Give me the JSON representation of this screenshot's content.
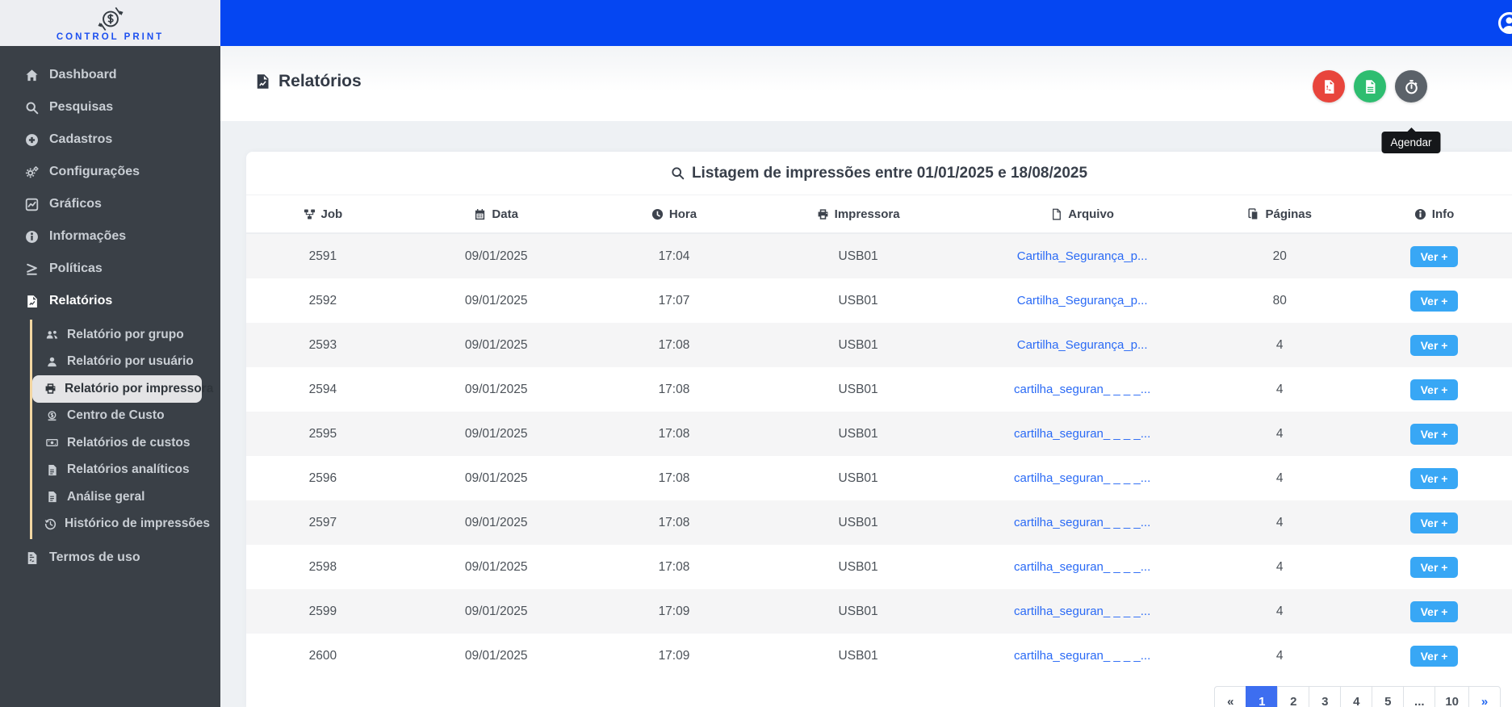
{
  "app": {
    "brand": "CONTROL PRINT"
  },
  "colors": {
    "topbar": "#0546f2",
    "sidebar": "#3a4047",
    "brand_blue": "#1d50f0",
    "submenu_border": "#f3d7a2",
    "link": "#2a6af5",
    "ver_button": "#38a7f5",
    "pdf_button": "#e8453c",
    "csv_button": "#2ebd70",
    "schedule_button": "#5b6269",
    "pagination_active": "#3d6ef0",
    "row_stripe": "#f5f5f6"
  },
  "icons": {
    "brand-logo-icon": "dollar-circle-with-arrows",
    "home-icon": "house",
    "search-icon": "magnifier",
    "plus-circle-icon": "circled-plus",
    "gears-icon": "two-gears",
    "chart-icon": "line-chart-square",
    "info-icon": "circled-i",
    "gte-icon": "greater-or-equal",
    "file-chart-icon": "report-file",
    "users-icon": "people-group",
    "user-icon": "person",
    "printer-icon": "printer",
    "coin-icon": "dollar-coin-on-base",
    "bill-icon": "money-bill",
    "file-lines-icon": "document-with-lines",
    "history-icon": "clock-with-back-arrow",
    "file-contract-icon": "contract-document",
    "diagram-icon": "project-diagram",
    "calendar-icon": "calendar",
    "clock-icon": "clock",
    "file-icon": "blank-file",
    "pages-icon": "stacked-pages",
    "file-pdf-icon": "pdf-file",
    "file-csv-icon": "csv-file",
    "stopwatch-icon": "stopwatch",
    "user-circle-icon": "account-avatar",
    "chevron-down-icon": "chevron-down",
    "chevron-up-icon": "chevron-up"
  },
  "sidebar": {
    "items": [
      {
        "label": "Dashboard",
        "icon": "home"
      },
      {
        "label": "Pesquisas",
        "icon": "search"
      },
      {
        "label": "Cadastros",
        "icon": "plus-circle",
        "chevron": "down"
      },
      {
        "label": "Configurações",
        "icon": "gears",
        "chevron": "down"
      },
      {
        "label": "Gráficos",
        "icon": "chart",
        "chevron": "down"
      },
      {
        "label": "Informações",
        "icon": "info",
        "chevron": "down"
      },
      {
        "label": "Políticas",
        "icon": "gte",
        "chevron": "down"
      },
      {
        "label": "Relatórios",
        "icon": "file-chart",
        "chevron": "up",
        "bold": true,
        "children": [
          {
            "label": "Relatório por grupo",
            "icon": "users"
          },
          {
            "label": "Relatório por usuário",
            "icon": "user"
          },
          {
            "label": "Relatório por impressora",
            "icon": "printer",
            "active": true
          },
          {
            "label": "Centro de Custo",
            "icon": "coin"
          },
          {
            "label": "Relatórios de custos",
            "icon": "bill"
          },
          {
            "label": "Relatórios analíticos",
            "icon": "file-lines"
          },
          {
            "label": "Análise geral",
            "icon": "file-lines"
          },
          {
            "label": "Histórico de impressões",
            "icon": "history"
          }
        ]
      },
      {
        "label": "Termos de uso",
        "icon": "file-contract"
      }
    ]
  },
  "header": {
    "title": "Relatórios",
    "tooltip": "Agendar",
    "buttons": [
      {
        "name": "export-pdf",
        "icon": "file-pdf",
        "color": "#e8453c"
      },
      {
        "name": "export-csv",
        "icon": "file-csv",
        "color": "#2ebd70"
      },
      {
        "name": "schedule",
        "icon": "stopwatch",
        "color": "#5b6269"
      }
    ]
  },
  "card": {
    "title": "Listagem de impressões entre 01/01/2025 e 18/08/2025"
  },
  "table": {
    "info_button_label": "Ver +",
    "columns": [
      {
        "label": "Job",
        "icon": "diagram"
      },
      {
        "label": "Data",
        "icon": "calendar"
      },
      {
        "label": "Hora",
        "icon": "clock"
      },
      {
        "label": "Impressora",
        "icon": "printer"
      },
      {
        "label": "Arquivo",
        "icon": "file"
      },
      {
        "label": "Páginas",
        "icon": "pages"
      },
      {
        "label": "Info",
        "icon": "info"
      }
    ],
    "rows": [
      {
        "job": "2591",
        "data": "09/01/2025",
        "hora": "17:04",
        "impressora": "USB01",
        "arquivo": "Cartilha_Segurança_p...",
        "paginas": "20"
      },
      {
        "job": "2592",
        "data": "09/01/2025",
        "hora": "17:07",
        "impressora": "USB01",
        "arquivo": "Cartilha_Segurança_p...",
        "paginas": "80"
      },
      {
        "job": "2593",
        "data": "09/01/2025",
        "hora": "17:08",
        "impressora": "USB01",
        "arquivo": "Cartilha_Segurança_p...",
        "paginas": "4"
      },
      {
        "job": "2594",
        "data": "09/01/2025",
        "hora": "17:08",
        "impressora": "USB01",
        "arquivo": "cartilha_seguran_ _ _ _...",
        "paginas": "4"
      },
      {
        "job": "2595",
        "data": "09/01/2025",
        "hora": "17:08",
        "impressora": "USB01",
        "arquivo": "cartilha_seguran_ _ _ _...",
        "paginas": "4"
      },
      {
        "job": "2596",
        "data": "09/01/2025",
        "hora": "17:08",
        "impressora": "USB01",
        "arquivo": "cartilha_seguran_ _ _ _...",
        "paginas": "4"
      },
      {
        "job": "2597",
        "data": "09/01/2025",
        "hora": "17:08",
        "impressora": "USB01",
        "arquivo": "cartilha_seguran_ _ _ _...",
        "paginas": "4"
      },
      {
        "job": "2598",
        "data": "09/01/2025",
        "hora": "17:08",
        "impressora": "USB01",
        "arquivo": "cartilha_seguran_ _ _ _...",
        "paginas": "4"
      },
      {
        "job": "2599",
        "data": "09/01/2025",
        "hora": "17:09",
        "impressora": "USB01",
        "arquivo": "cartilha_seguran_ _ _ _...",
        "paginas": "4"
      },
      {
        "job": "2600",
        "data": "09/01/2025",
        "hora": "17:09",
        "impressora": "USB01",
        "arquivo": "cartilha_seguran_ _ _ _...",
        "paginas": "4"
      }
    ]
  },
  "pagination": {
    "items": [
      "«",
      "1",
      "2",
      "3",
      "4",
      "5",
      "...",
      "10",
      "»"
    ],
    "active": "1"
  }
}
